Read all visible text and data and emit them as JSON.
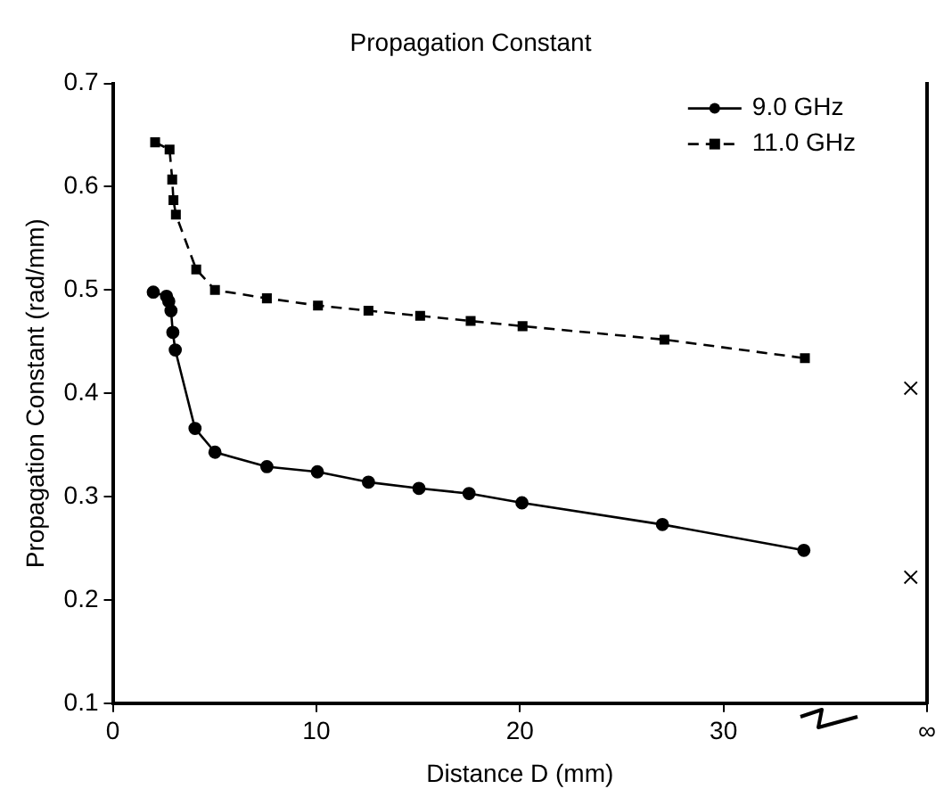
{
  "chart_data": {
    "type": "line",
    "title": "Propagation Constant",
    "xlabel": "Distance D (mm)",
    "ylabel": "Propagation Constant (rad/mm)",
    "xlim": [
      0,
      40
    ],
    "xticks": [
      0,
      10,
      20,
      30,
      {
        "value": 40,
        "label": "∞"
      }
    ],
    "ylim": [
      0.1,
      0.7
    ],
    "yticks": [
      0.1,
      0.2,
      0.3,
      0.4,
      0.5,
      0.6,
      0.7
    ],
    "grid": false,
    "legend": "top right",
    "series": [
      {
        "name": "9.0 GHz",
        "color": "#000000",
        "marker": "circle",
        "line_style": "solid",
        "x": [
          1.99,
          2.64,
          2.75,
          2.86,
          2.95,
          3.07,
          4.04,
          5.02,
          7.57,
          10.05,
          12.56,
          15.04,
          17.5,
          20.1,
          27.0,
          33.95
        ],
        "values": [
          0.498,
          0.494,
          0.489,
          0.48,
          0.459,
          0.442,
          0.366,
          0.343,
          0.329,
          0.324,
          0.314,
          0.308,
          0.303,
          0.294,
          0.273,
          0.248
        ]
      },
      {
        "name": "11.0 GHz",
        "color": "#000000",
        "marker": "square",
        "line_style": "dashed",
        "x": [
          2.08,
          2.79,
          2.92,
          2.98,
          3.1,
          4.1,
          5.02,
          7.57,
          10.08,
          12.56,
          15.1,
          17.58,
          20.13,
          27.1,
          34.0
        ],
        "values": [
          0.643,
          0.636,
          0.607,
          0.587,
          0.573,
          0.52,
          0.5,
          0.492,
          0.485,
          0.48,
          0.475,
          0.47,
          0.465,
          0.452,
          0.434
        ]
      },
      {
        "type": "scatter",
        "color": "#000000",
        "marker": "cross",
        "x": [
          39.2,
          39.2
        ],
        "values": [
          0.405,
          0.222
        ]
      }
    ]
  }
}
